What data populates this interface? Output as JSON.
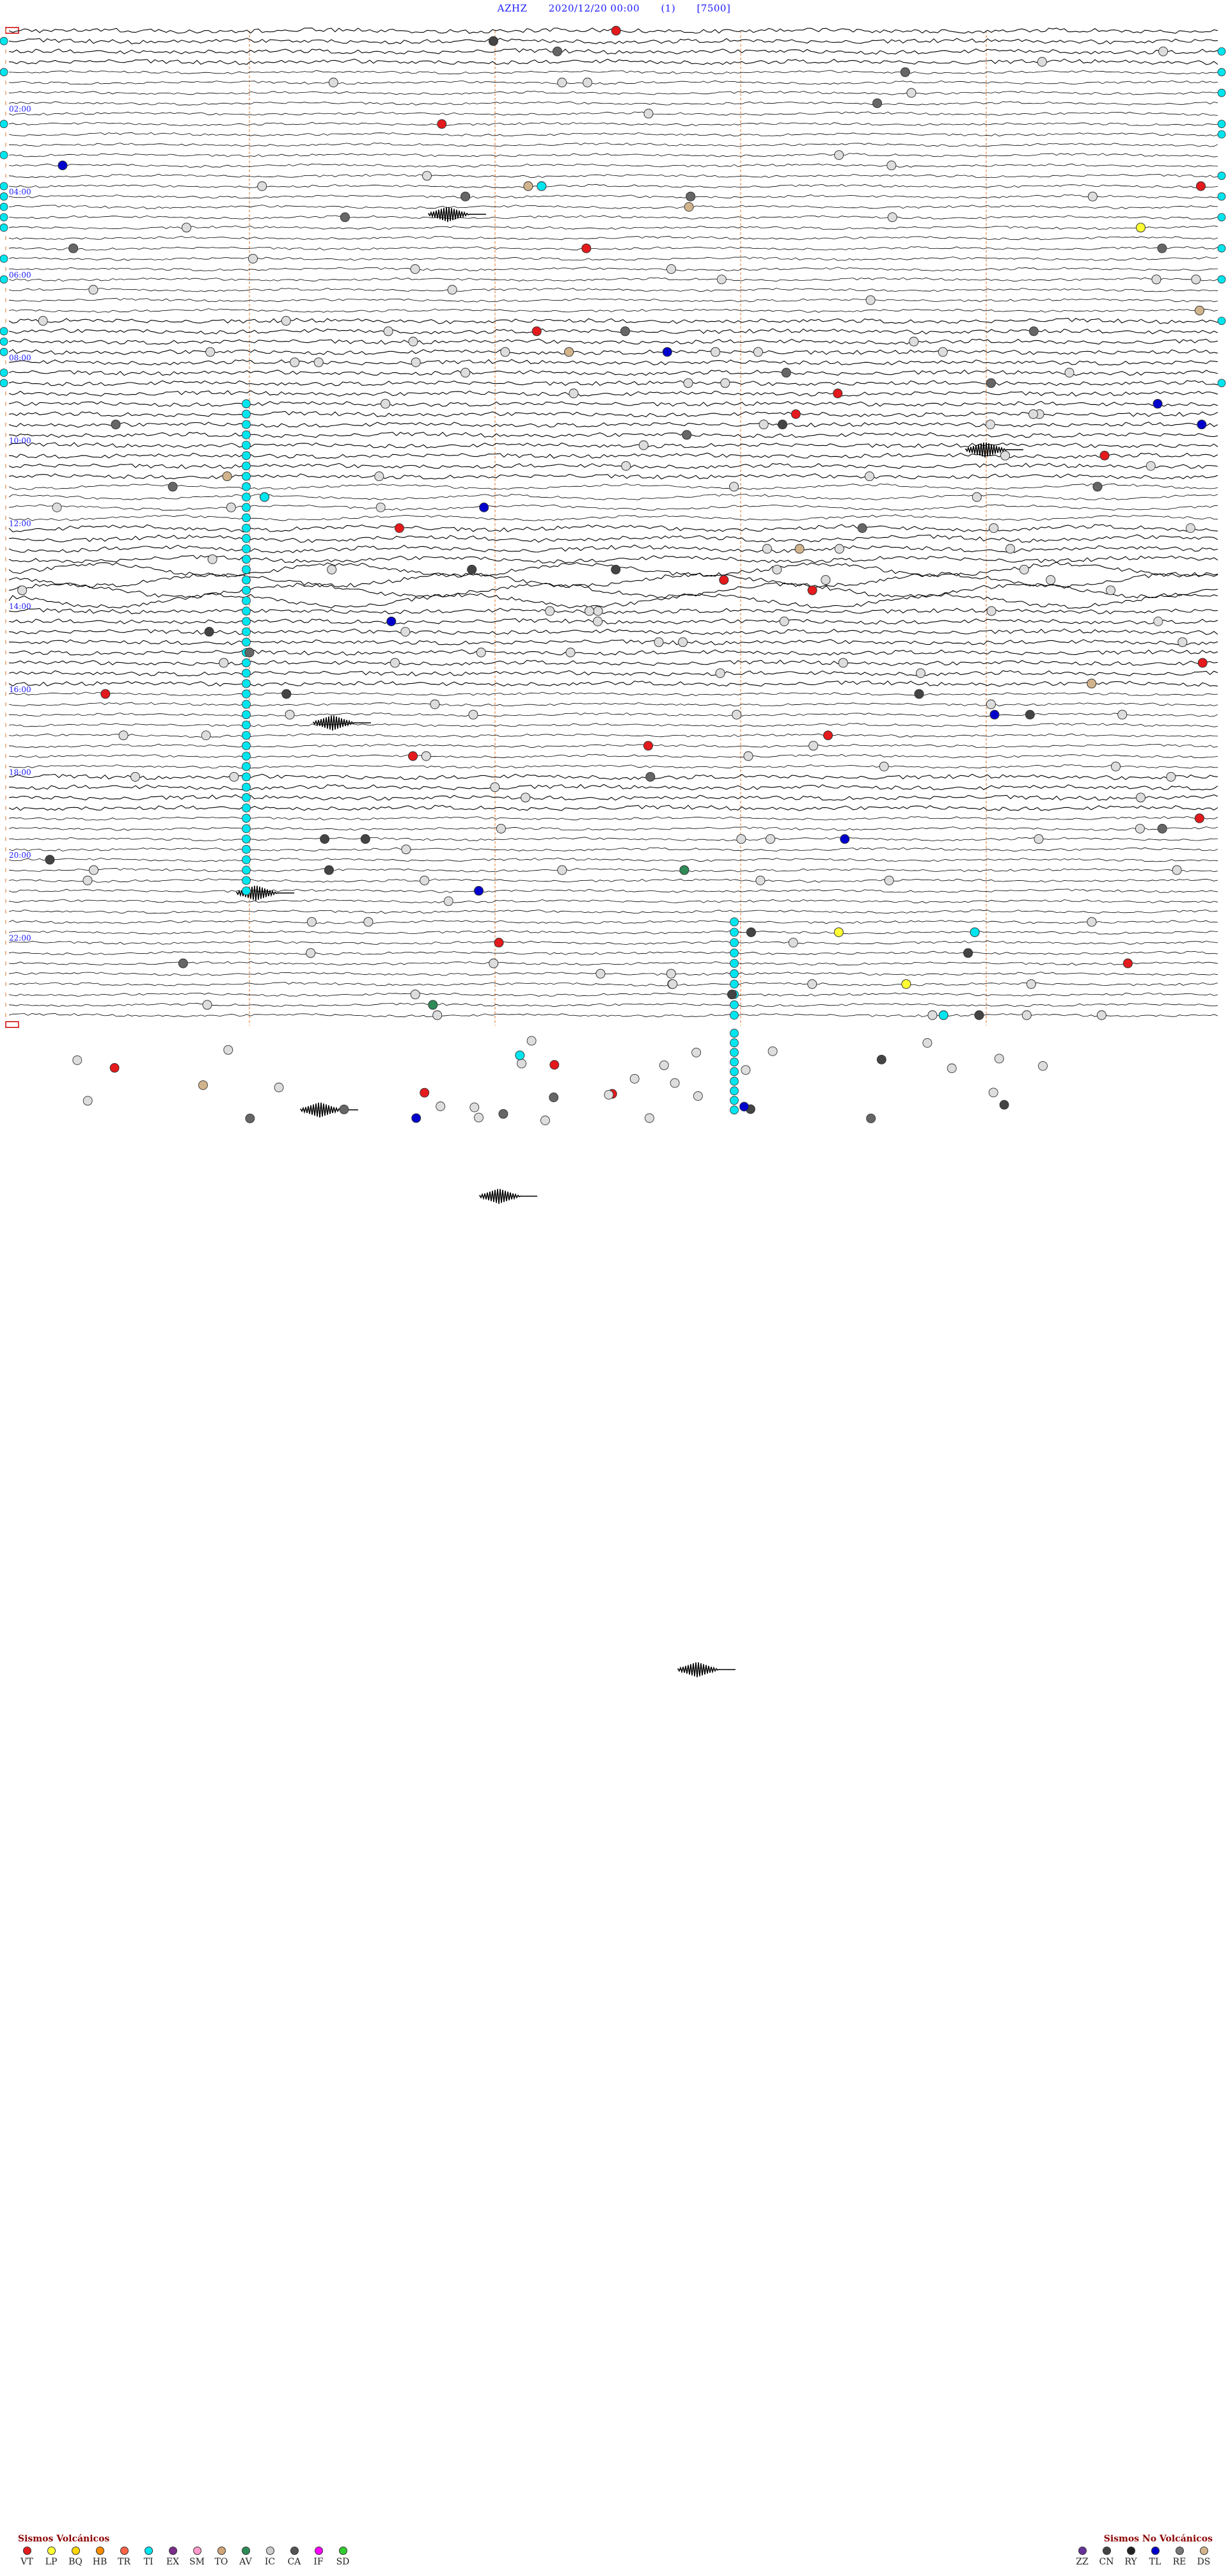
{
  "header": {
    "station": "AZHZ",
    "datetime": "2020/12/20 00:00",
    "index": "(1)",
    "scale": "[7500]"
  },
  "colors": {
    "header_text": "#1a1aff",
    "time_label": "#1a1aff",
    "trace": "#000000",
    "minute_marker": "#e07020",
    "legend_title": "#8b0000"
  },
  "chart_data": {
    "type": "helicorder",
    "rows_per_hour": 4,
    "hours_shown": 24,
    "time_labels": [
      "02:00",
      "04:00",
      "06:00",
      "08:00",
      "10:00",
      "12:00",
      "14:00",
      "16:00",
      "18:00",
      "20:00",
      "22:00"
    ],
    "noisy_hours": [
      0,
      7,
      8,
      9,
      10,
      12,
      13,
      14,
      15,
      18
    ],
    "legend_volcanic": {
      "title": "Sismos Volcánicos",
      "items": [
        {
          "code": "VT",
          "color": "#e41a1c"
        },
        {
          "code": "LP",
          "color": "#ffff33"
        },
        {
          "code": "BQ",
          "color": "#ffd700"
        },
        {
          "code": "HB",
          "color": "#ff8c00"
        },
        {
          "code": "TR",
          "color": "#ff6347"
        },
        {
          "code": "TI",
          "color": "#00e5ee"
        },
        {
          "code": "EX",
          "color": "#7b2d8b"
        },
        {
          "code": "SM",
          "color": "#ff99cc"
        },
        {
          "code": "TO",
          "color": "#d2a679"
        },
        {
          "code": "AV",
          "color": "#2e8b57"
        },
        {
          "code": "IC",
          "color": "#cccccc"
        },
        {
          "code": "CA",
          "color": "#555555"
        },
        {
          "code": "IF",
          "color": "#ff00ff"
        },
        {
          "code": "SD",
          "color": "#32cd32"
        }
      ]
    },
    "legend_nonvolcanic": {
      "title": "Sismos No Volcánicos",
      "items": [
        {
          "code": "ZZ",
          "color": "#663399"
        },
        {
          "code": "CN",
          "color": "#444444"
        },
        {
          "code": "RY",
          "color": "#222222"
        },
        {
          "code": "TL",
          "color": "#0000cc"
        },
        {
          "code": "RE",
          "color": "#777777"
        },
        {
          "code": "DS",
          "color": "#d2b48c"
        }
      ]
    }
  }
}
